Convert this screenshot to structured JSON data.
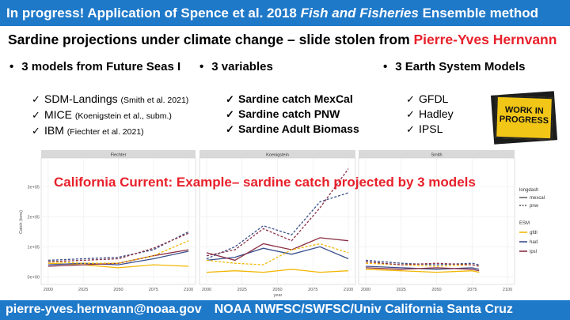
{
  "banner": {
    "prefix": "In progress! Application of Spence et al. 2018 ",
    "journal": "Fish and Fisheries",
    "suffix": " Ensemble method"
  },
  "subtitle": {
    "main": "Sardine projections under climate change – slide stolen from ",
    "credit": "Pierre-Yves Hernvann"
  },
  "columns": [
    {
      "bullet": "•",
      "heading": "3 models from Future Seas I"
    },
    {
      "bullet": "•",
      "heading": "3 variables"
    },
    {
      "bullet": "•",
      "heading": "3 Earth System Models"
    }
  ],
  "check_glyph": "✓",
  "models": [
    {
      "name": "SDM-Landings",
      "ref": "(Smith et al. 2021)"
    },
    {
      "name": "MICE",
      "ref": "(Koenigstein et al., subm.)"
    },
    {
      "name": "IBM",
      "ref": "(Fiechter et al. 2021)"
    }
  ],
  "variables": [
    "Sardine catch MexCal",
    "Sardine catch PNW",
    "Sardine Adult Biomass"
  ],
  "esms": [
    "GFDL",
    "Hadley",
    "IPSL"
  ],
  "wip_sign": {
    "line1": "WORK IN",
    "line2": "PROGRESS"
  },
  "chart_overlay": "California Current: Example– sardine catch projected by 3 models",
  "footer": {
    "email": "pierre-yves.hernvann@noaa.gov",
    "affiliation": "NOAA NWFSC/SWFSC/Univ California Santa Cruz"
  },
  "colors": {
    "banner": "#1f79c9",
    "accent_red": "#e8202a",
    "gfdl": "#f2b705",
    "had": "#3a4f8c",
    "ipsl": "#8b2f45"
  },
  "chart_data": {
    "type": "line",
    "panels": [
      "Fiechter",
      "Koenigstein",
      "Smith"
    ],
    "xlabel": "year",
    "ylabel": "Catch (tons)",
    "x_ticks": [
      2000,
      2025,
      2050,
      2075,
      2100
    ],
    "y_ticks": [
      "0e+00",
      "1e+05",
      "2e+05",
      "3e+05"
    ],
    "ylim": [
      0,
      380000
    ],
    "legend_linetype": {
      "title": "longdash",
      "items": [
        "mexcal",
        "pnw"
      ]
    },
    "legend_esm": {
      "title": "ESM",
      "items": [
        "gfdl",
        "had",
        "ipsl"
      ]
    },
    "series": [
      {
        "panel": 0,
        "esm": "gfdl",
        "linetype": "mexcal",
        "x": [
          2000,
          2025,
          2050,
          2075,
          2100
        ],
        "y": [
          45000,
          40000,
          30000,
          40000,
          35000
        ]
      },
      {
        "panel": 0,
        "esm": "had",
        "linetype": "mexcal",
        "x": [
          2000,
          2025,
          2050,
          2075,
          2100
        ],
        "y": [
          40000,
          45000,
          40000,
          60000,
          85000
        ]
      },
      {
        "panel": 0,
        "esm": "ipsl",
        "linetype": "mexcal",
        "x": [
          2000,
          2025,
          2050,
          2075,
          2100
        ],
        "y": [
          35000,
          40000,
          45000,
          70000,
          90000
        ]
      },
      {
        "panel": 0,
        "esm": "gfdl",
        "linetype": "pnw",
        "x": [
          2000,
          2025,
          2050,
          2075,
          2100
        ],
        "y": [
          50000,
          45000,
          45000,
          70000,
          120000
        ]
      },
      {
        "panel": 0,
        "esm": "had",
        "linetype": "pnw",
        "x": [
          2000,
          2025,
          2050,
          2075,
          2100
        ],
        "y": [
          55000,
          60000,
          65000,
          90000,
          150000
        ]
      },
      {
        "panel": 0,
        "esm": "ipsl",
        "linetype": "pnw",
        "x": [
          2000,
          2025,
          2050,
          2075,
          2100
        ],
        "y": [
          50000,
          55000,
          60000,
          95000,
          145000
        ]
      },
      {
        "panel": 1,
        "esm": "gfdl",
        "linetype": "mexcal",
        "x": [
          2000,
          2020,
          2040,
          2060,
          2080,
          2100
        ],
        "y": [
          15000,
          20000,
          15000,
          25000,
          15000,
          20000
        ]
      },
      {
        "panel": 1,
        "esm": "had",
        "linetype": "mexcal",
        "x": [
          2000,
          2020,
          2040,
          2060,
          2080,
          2100
        ],
        "y": [
          55000,
          65000,
          95000,
          75000,
          100000,
          60000
        ]
      },
      {
        "panel": 1,
        "esm": "ipsl",
        "linetype": "mexcal",
        "x": [
          2000,
          2020,
          2040,
          2060,
          2080,
          2100
        ],
        "y": [
          80000,
          55000,
          110000,
          90000,
          130000,
          120000
        ]
      },
      {
        "panel": 1,
        "esm": "gfdl",
        "linetype": "pnw",
        "x": [
          2000,
          2020,
          2040,
          2060,
          2080,
          2100
        ],
        "y": [
          55000,
          45000,
          40000,
          90000,
          110000,
          80000
        ]
      },
      {
        "panel": 1,
        "esm": "had",
        "linetype": "pnw",
        "x": [
          2000,
          2020,
          2040,
          2060,
          2080,
          2100
        ],
        "y": [
          60000,
          100000,
          170000,
          140000,
          250000,
          280000
        ]
      },
      {
        "panel": 1,
        "esm": "ipsl",
        "linetype": "pnw",
        "x": [
          2000,
          2020,
          2040,
          2060,
          2080,
          2100
        ],
        "y": [
          70000,
          90000,
          160000,
          120000,
          230000,
          360000
        ]
      },
      {
        "panel": 2,
        "esm": "gfdl",
        "linetype": "mexcal",
        "x": [
          2000,
          2025,
          2050,
          2075,
          2080
        ],
        "y": [
          25000,
          20000,
          15000,
          20000,
          15000
        ]
      },
      {
        "panel": 2,
        "esm": "had",
        "linetype": "mexcal",
        "x": [
          2000,
          2025,
          2050,
          2075,
          2080
        ],
        "y": [
          35000,
          30000,
          25000,
          30000,
          25000
        ]
      },
      {
        "panel": 2,
        "esm": "ipsl",
        "linetype": "mexcal",
        "x": [
          2000,
          2025,
          2050,
          2075,
          2080
        ],
        "y": [
          30000,
          25000,
          30000,
          25000,
          20000
        ]
      },
      {
        "panel": 2,
        "esm": "gfdl",
        "linetype": "pnw",
        "x": [
          2000,
          2025,
          2050,
          2075,
          2080
        ],
        "y": [
          45000,
          40000,
          35000,
          40000,
          35000
        ]
      },
      {
        "panel": 2,
        "esm": "had",
        "linetype": "pnw",
        "x": [
          2000,
          2025,
          2050,
          2075,
          2080
        ],
        "y": [
          55000,
          45000,
          40000,
          45000,
          40000
        ]
      },
      {
        "panel": 2,
        "esm": "ipsl",
        "linetype": "pnw",
        "x": [
          2000,
          2025,
          2050,
          2075,
          2080
        ],
        "y": [
          50000,
          40000,
          45000,
          40000,
          35000
        ]
      }
    ]
  }
}
